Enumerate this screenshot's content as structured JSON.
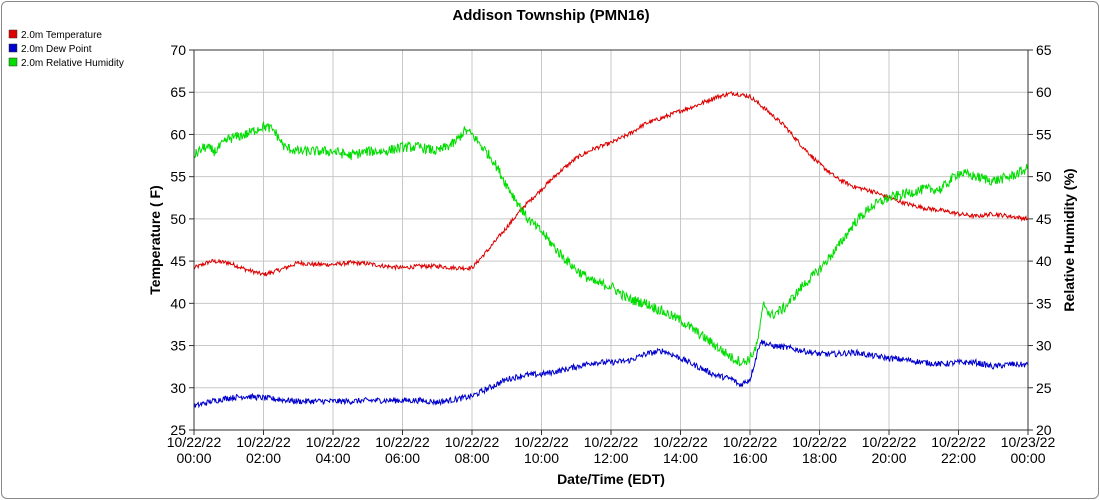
{
  "chart_data": {
    "type": "line",
    "title": "Addison Township (PMN16)",
    "xlabel": "Date/Time (EDT)",
    "ylabel_left": "Temperature ( F)",
    "ylabel_right": "Relative Humidity (%)",
    "x_range_hours": [
      0,
      24
    ],
    "x_ticks": [
      {
        "hour": 0,
        "date": "10/22/22",
        "time": "00:00"
      },
      {
        "hour": 2,
        "date": "10/22/22",
        "time": "02:00"
      },
      {
        "hour": 4,
        "date": "10/22/22",
        "time": "04:00"
      },
      {
        "hour": 6,
        "date": "10/22/22",
        "time": "06:00"
      },
      {
        "hour": 8,
        "date": "10/22/22",
        "time": "08:00"
      },
      {
        "hour": 10,
        "date": "10/22/22",
        "time": "10:00"
      },
      {
        "hour": 12,
        "date": "10/22/22",
        "time": "12:00"
      },
      {
        "hour": 14,
        "date": "10/22/22",
        "time": "14:00"
      },
      {
        "hour": 16,
        "date": "10/22/22",
        "time": "16:00"
      },
      {
        "hour": 18,
        "date": "10/22/22",
        "time": "18:00"
      },
      {
        "hour": 20,
        "date": "10/22/22",
        "time": "20:00"
      },
      {
        "hour": 22,
        "date": "10/22/22",
        "time": "22:00"
      },
      {
        "hour": 24,
        "date": "10/23/22",
        "time": "00:00"
      }
    ],
    "ylim_left": [
      25,
      70
    ],
    "yticks_left": [
      25,
      30,
      35,
      40,
      45,
      50,
      55,
      60,
      65,
      70
    ],
    "ylim_right": [
      20,
      65
    ],
    "yticks_right": [
      20,
      25,
      30,
      35,
      40,
      45,
      50,
      55,
      60,
      65
    ],
    "grid": true,
    "legend_position": "top-left",
    "series": [
      {
        "name": "2.0m Temperature",
        "color": "#dd0000",
        "axis": "left",
        "points": [
          [
            0,
            44.2
          ],
          [
            0.5,
            45.0
          ],
          [
            1,
            44.8
          ],
          [
            1.5,
            44.0
          ],
          [
            2,
            43.4
          ],
          [
            2.5,
            44.0
          ],
          [
            3,
            44.8
          ],
          [
            3.5,
            44.6
          ],
          [
            4,
            44.6
          ],
          [
            4.5,
            44.8
          ],
          [
            5,
            44.7
          ],
          [
            5.5,
            44.4
          ],
          [
            6,
            44.2
          ],
          [
            6.5,
            44.4
          ],
          [
            7,
            44.4
          ],
          [
            7.5,
            44.2
          ],
          [
            8,
            44.2
          ],
          [
            8.5,
            46.5
          ],
          [
            9,
            49.0
          ],
          [
            9.5,
            51.5
          ],
          [
            10,
            53.5
          ],
          [
            10.5,
            55.5
          ],
          [
            11,
            57.2
          ],
          [
            11.5,
            58.3
          ],
          [
            12,
            59.0
          ],
          [
            12.5,
            60.0
          ],
          [
            13,
            61.3
          ],
          [
            13.5,
            62.0
          ],
          [
            14,
            62.8
          ],
          [
            14.5,
            63.5
          ],
          [
            15,
            64.4
          ],
          [
            15.5,
            64.9
          ],
          [
            16,
            64.5
          ],
          [
            16.5,
            62.8
          ],
          [
            17,
            61.0
          ],
          [
            17.5,
            58.6
          ],
          [
            18,
            56.5
          ],
          [
            18.5,
            54.8
          ],
          [
            19,
            53.8
          ],
          [
            19.5,
            53.3
          ],
          [
            20,
            52.5
          ],
          [
            20.5,
            51.8
          ],
          [
            21,
            51.3
          ],
          [
            21.5,
            51.0
          ],
          [
            22,
            50.6
          ],
          [
            22.5,
            50.3
          ],
          [
            23,
            50.6
          ],
          [
            23.5,
            50.3
          ],
          [
            24,
            50.0
          ]
        ]
      },
      {
        "name": "2.0m Dew Point",
        "color": "#0000cc",
        "axis": "left",
        "points": [
          [
            0,
            27.8
          ],
          [
            0.5,
            28.4
          ],
          [
            1,
            28.8
          ],
          [
            1.5,
            29.0
          ],
          [
            2,
            28.8
          ],
          [
            2.5,
            28.6
          ],
          [
            3,
            28.4
          ],
          [
            3.5,
            28.4
          ],
          [
            4,
            28.4
          ],
          [
            4.5,
            28.4
          ],
          [
            5,
            28.5
          ],
          [
            5.5,
            28.5
          ],
          [
            6,
            28.5
          ],
          [
            6.5,
            28.5
          ],
          [
            7,
            28.3
          ],
          [
            7.5,
            28.6
          ],
          [
            8,
            29.0
          ],
          [
            8.5,
            30.0
          ],
          [
            9,
            31.0
          ],
          [
            9.5,
            31.5
          ],
          [
            10,
            31.6
          ],
          [
            10.5,
            32.0
          ],
          [
            11,
            32.5
          ],
          [
            11.5,
            33.0
          ],
          [
            12,
            33.0
          ],
          [
            12.5,
            33.2
          ],
          [
            13,
            34.0
          ],
          [
            13.5,
            34.4
          ],
          [
            14,
            33.5
          ],
          [
            14.5,
            32.5
          ],
          [
            15,
            31.5
          ],
          [
            15.5,
            31.0
          ],
          [
            15.7,
            30.3
          ],
          [
            16,
            31.0
          ],
          [
            16.3,
            35.5
          ],
          [
            16.6,
            35.0
          ],
          [
            17,
            34.8
          ],
          [
            17.5,
            34.4
          ],
          [
            18,
            34.0
          ],
          [
            18.5,
            34.0
          ],
          [
            19,
            34.2
          ],
          [
            19.5,
            33.8
          ],
          [
            20,
            33.5
          ],
          [
            20.5,
            33.3
          ],
          [
            21,
            33.0
          ],
          [
            21.5,
            32.8
          ],
          [
            22,
            33.0
          ],
          [
            22.5,
            33.0
          ],
          [
            23,
            32.5
          ],
          [
            23.5,
            32.8
          ],
          [
            24,
            32.7
          ]
        ]
      },
      {
        "name": "2.0m Relative Humidity",
        "color": "#00dd00",
        "axis": "right",
        "points": [
          [
            0,
            52.5
          ],
          [
            0.3,
            53.5
          ],
          [
            0.6,
            53.0
          ],
          [
            1,
            54.5
          ],
          [
            1.5,
            55.0
          ],
          [
            2,
            56.0
          ],
          [
            2.3,
            55.5
          ],
          [
            2.6,
            53.5
          ],
          [
            3,
            53.0
          ],
          [
            3.5,
            53.0
          ],
          [
            4,
            53.0
          ],
          [
            4.5,
            52.5
          ],
          [
            5,
            53.0
          ],
          [
            5.5,
            53.0
          ],
          [
            6,
            53.5
          ],
          [
            6.5,
            53.5
          ],
          [
            7,
            53.0
          ],
          [
            7.5,
            54.0
          ],
          [
            7.8,
            55.5
          ],
          [
            8,
            55.0
          ],
          [
            8.3,
            53.5
          ],
          [
            8.6,
            52.0
          ],
          [
            9,
            49.0
          ],
          [
            9.3,
            47.0
          ],
          [
            9.6,
            45.0
          ],
          [
            10,
            43.5
          ],
          [
            10.5,
            41.0
          ],
          [
            11,
            39.0
          ],
          [
            11.5,
            37.5
          ],
          [
            12,
            37.0
          ],
          [
            12.5,
            35.5
          ],
          [
            13,
            35.0
          ],
          [
            13.5,
            34.0
          ],
          [
            14,
            33.0
          ],
          [
            14.5,
            31.5
          ],
          [
            15,
            30.0
          ],
          [
            15.5,
            28.5
          ],
          [
            15.8,
            28.0
          ],
          [
            16,
            28.5
          ],
          [
            16.2,
            30.0
          ],
          [
            16.4,
            35.0
          ],
          [
            16.6,
            33.5
          ],
          [
            17,
            34.5
          ],
          [
            17.5,
            37.0
          ],
          [
            18,
            39.0
          ],
          [
            18.5,
            41.5
          ],
          [
            19,
            44.5
          ],
          [
            19.5,
            46.5
          ],
          [
            20,
            47.5
          ],
          [
            20.5,
            48.0
          ],
          [
            21,
            48.5
          ],
          [
            21.5,
            48.5
          ],
          [
            22,
            50.5
          ],
          [
            22.5,
            50.0
          ],
          [
            23,
            49.5
          ],
          [
            23.5,
            50.0
          ],
          [
            24,
            51.0
          ]
        ]
      }
    ]
  }
}
